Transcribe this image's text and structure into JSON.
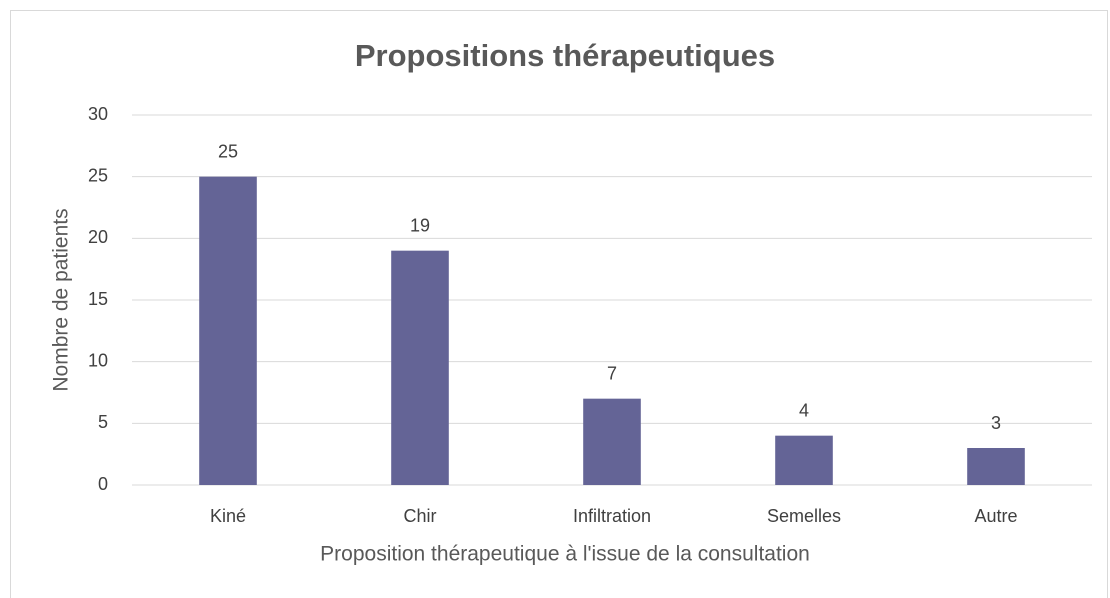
{
  "chart_data": {
    "type": "bar",
    "title": "Propositions thérapeutiques",
    "x_label": "Proposition thérapeutique à l'issue de la consultation",
    "y_label": "Nombre de patients",
    "categories": [
      "Kiné",
      "Chir",
      "Infiltration",
      "Semelles",
      "Autre"
    ],
    "values": [
      25,
      19,
      7,
      4,
      3
    ],
    "color": "#646496",
    "ylim": [
      0,
      30
    ],
    "yticks": [
      0,
      5,
      10,
      15,
      20,
      25,
      30
    ],
    "grid": true
  }
}
